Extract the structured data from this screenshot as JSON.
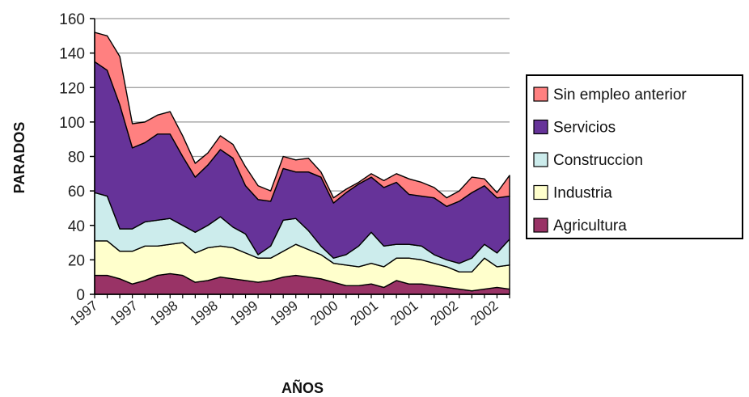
{
  "chart_data": {
    "type": "area",
    "stacked": true,
    "xlabel": "AÑOS",
    "ylabel": "PARADOS",
    "ylim": [
      0,
      160
    ],
    "yticks": [
      0,
      20,
      40,
      60,
      80,
      100,
      120,
      140,
      160
    ],
    "xtick_labels": [
      "1997",
      "1997",
      "1998",
      "1998",
      "1999",
      "1999",
      "2000",
      "2001",
      "2001",
      "2002",
      "2002"
    ],
    "grid": "horizontal",
    "legend_position": "right",
    "series": [
      {
        "name": "Agricultura",
        "color": "#993366",
        "values": [
          11,
          11,
          9,
          6,
          8,
          11,
          12,
          11,
          7,
          8,
          10,
          9,
          8,
          7,
          8,
          10,
          11,
          10,
          9,
          7,
          5,
          5,
          6,
          4,
          8,
          6,
          6,
          5,
          4,
          3,
          2,
          3,
          4,
          3
        ]
      },
      {
        "name": "Industria",
        "color": "#ffffcc",
        "values": [
          20,
          20,
          16,
          19,
          20,
          17,
          17,
          19,
          17,
          19,
          18,
          18,
          16,
          14,
          13,
          15,
          18,
          16,
          14,
          11,
          12,
          11,
          12,
          12,
          13,
          15,
          14,
          13,
          12,
          10,
          11,
          18,
          12,
          14
        ]
      },
      {
        "name": "Construccion",
        "color": "#ccecec",
        "values": [
          28,
          26,
          13,
          13,
          14,
          15,
          15,
          10,
          12,
          13,
          17,
          12,
          11,
          2,
          7,
          18,
          15,
          11,
          5,
          3,
          6,
          12,
          18,
          12,
          8,
          8,
          8,
          5,
          4,
          5,
          8,
          8,
          8,
          15
        ]
      },
      {
        "name": "Servicios",
        "color": "#663399",
        "values": [
          76,
          73,
          72,
          47,
          46,
          50,
          49,
          40,
          32,
          35,
          39,
          40,
          28,
          32,
          26,
          30,
          27,
          34,
          40,
          32,
          36,
          36,
          32,
          34,
          36,
          29,
          29,
          33,
          31,
          36,
          38,
          34,
          32,
          25
        ]
      },
      {
        "name": "Sin empleo anterior",
        "color": "#ff8080",
        "values": [
          17,
          20,
          28,
          14,
          12,
          11,
          13,
          12,
          8,
          7,
          8,
          8,
          11,
          8,
          6,
          7,
          7,
          8,
          3,
          3,
          2,
          1,
          2,
          4,
          5,
          9,
          8,
          6,
          5,
          6,
          9,
          4,
          3,
          12
        ]
      }
    ]
  },
  "legend": {
    "items": [
      {
        "label": "Sin empleo anterior",
        "color": "#ff8080"
      },
      {
        "label": "Servicios",
        "color": "#663399"
      },
      {
        "label": "Construccion",
        "color": "#ccecec"
      },
      {
        "label": "Industria",
        "color": "#ffffcc"
      },
      {
        "label": "Agricultura",
        "color": "#993366"
      }
    ]
  }
}
